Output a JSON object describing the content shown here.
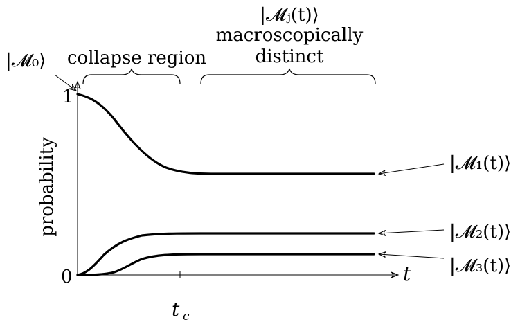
{
  "labels": {
    "m0": "|𝓜₀⟩",
    "collapse_region": "collapse region",
    "mj": "|𝓜ⱼ(t)⟩",
    "macro_line1": "macroscopically",
    "macro_line2": "distinct",
    "m1": "|𝓜₁(t)⟩",
    "m2": "|𝓜₂(t)⟩",
    "m3": "|𝓜₃(t)⟩"
  },
  "axes": {
    "ylabel": "probability",
    "xlabel": "t",
    "y_tick_top": "1",
    "y_tick_bottom": "0",
    "x_tick": "t",
    "x_tick_sub": "c"
  }
}
